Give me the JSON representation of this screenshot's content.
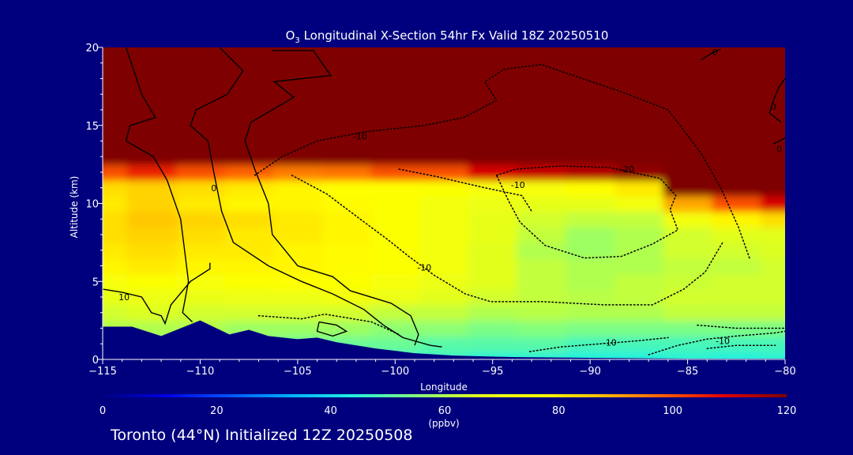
{
  "chart_data": {
    "type": "heatmap",
    "title_prefix": "O",
    "title_subscript": "3",
    "title_rest": " Longitudinal X-Section 54hr  Fx Valid 18Z 20250510",
    "xlabel": "Longitude",
    "ylabel": "Altitude (km)",
    "xlim": [
      -115,
      -80
    ],
    "ylim": [
      0,
      20
    ],
    "x_ticks": [
      -115,
      -110,
      -105,
      -100,
      -95,
      -90,
      -85,
      -80
    ],
    "x_tick_labels": [
      "−115",
      "−110",
      "−105",
      "−100",
      "−95",
      "−90",
      "−85",
      "−80"
    ],
    "y_ticks": [
      0,
      5,
      10,
      15,
      20
    ],
    "y_tick_labels": [
      "0",
      "5",
      "10",
      "15",
      "20"
    ],
    "colorbar": {
      "min": 0,
      "max": 120,
      "ticks": [
        0,
        20,
        40,
        60,
        80,
        100,
        120
      ],
      "tick_labels": [
        "0",
        "20",
        "40",
        "60",
        "80",
        "100",
        "120"
      ],
      "unit": "(ppbv)",
      "colors": [
        "#00007f",
        "#0000e0",
        "#0050ff",
        "#00b0ff",
        "#20f0e0",
        "#80ff80",
        "#e0ff20",
        "#ffff00",
        "#ffc000",
        "#ff6000",
        "#e00000",
        "#7f0000"
      ]
    },
    "ozone_ppbv": {
      "x": [
        -115,
        -112.5,
        -110,
        -107.5,
        -105,
        -102.5,
        -100,
        -97.5,
        -95,
        -92.5,
        -90,
        -87.5,
        -85,
        -82.5,
        -80
      ],
      "y": [
        0,
        1,
        2,
        3,
        4,
        5,
        6,
        7,
        8,
        9,
        10,
        11,
        12,
        13,
        14,
        15,
        16,
        17,
        18,
        19,
        20
      ],
      "values": [
        [
          55,
          55,
          55,
          55,
          48,
          46,
          46,
          47,
          45,
          45,
          44,
          44,
          45,
          44,
          45
        ],
        [
          56,
          56,
          56,
          55,
          52,
          52,
          52,
          50,
          50,
          50,
          48,
          48,
          48,
          48,
          48
        ],
        [
          60,
          60,
          60,
          58,
          58,
          58,
          56,
          56,
          54,
          55,
          54,
          54,
          54,
          54,
          54
        ],
        [
          64,
          65,
          64,
          64,
          64,
          64,
          62,
          62,
          60,
          61,
          60,
          60,
          62,
          62,
          62
        ],
        [
          68,
          70,
          69,
          70,
          70,
          72,
          70,
          66,
          64,
          62,
          61,
          62,
          64,
          64,
          64
        ],
        [
          74,
          75,
          74,
          75,
          76,
          75,
          74,
          70,
          66,
          62,
          60,
          62,
          63,
          64,
          64
        ],
        [
          78,
          80,
          78,
          78,
          78,
          77,
          75,
          72,
          66,
          62,
          60,
          60,
          62,
          62,
          64
        ],
        [
          80,
          82,
          80,
          80,
          78,
          77,
          75,
          72,
          66,
          60,
          58,
          60,
          64,
          64,
          65
        ],
        [
          82,
          84,
          82,
          80,
          80,
          78,
          75,
          72,
          68,
          62,
          58,
          60,
          64,
          66,
          66
        ],
        [
          82,
          86,
          84,
          82,
          80,
          78,
          75,
          72,
          68,
          64,
          62,
          62,
          72,
          78,
          82
        ],
        [
          80,
          84,
          80,
          78,
          78,
          77,
          75,
          72,
          70,
          68,
          68,
          72,
          90,
          100,
          110
        ],
        [
          82,
          84,
          82,
          80,
          78,
          76,
          76,
          75,
          74,
          74,
          76,
          80,
          120,
          120,
          120
        ],
        [
          100,
          105,
          100,
          98,
          95,
          96,
          100,
          100,
          110,
          112,
          114,
          118,
          120,
          120,
          120
        ],
        [
          120,
          120,
          120,
          120,
          120,
          120,
          120,
          120,
          120,
          120,
          120,
          120,
          120,
          120,
          120
        ],
        [
          120,
          120,
          120,
          120,
          120,
          120,
          120,
          120,
          120,
          120,
          120,
          120,
          120,
          120,
          120
        ],
        [
          120,
          120,
          120,
          120,
          120,
          120,
          120,
          120,
          120,
          120,
          120,
          120,
          120,
          120,
          120
        ],
        [
          120,
          120,
          120,
          120,
          120,
          120,
          120,
          120,
          120,
          120,
          120,
          120,
          120,
          120,
          120
        ],
        [
          120,
          120,
          120,
          120,
          120,
          120,
          120,
          120,
          120,
          120,
          120,
          120,
          120,
          120,
          120
        ],
        [
          120,
          120,
          120,
          120,
          120,
          120,
          120,
          120,
          120,
          120,
          120,
          120,
          120,
          120,
          120
        ],
        [
          120,
          120,
          120,
          120,
          120,
          120,
          120,
          120,
          120,
          120,
          120,
          120,
          120,
          120,
          120
        ],
        [
          120,
          120,
          120,
          120,
          120,
          120,
          120,
          120,
          120,
          120,
          120,
          120,
          120,
          120,
          120
        ]
      ]
    },
    "terrain": [
      [
        -115,
        2.1
      ],
      [
        -113.5,
        2.1
      ],
      [
        -112,
        1.5
      ],
      [
        -110,
        2.5
      ],
      [
        -108.5,
        1.6
      ],
      [
        -107.5,
        1.9
      ],
      [
        -106.5,
        1.5
      ],
      [
        -105,
        1.3
      ],
      [
        -104,
        1.4
      ],
      [
        -103,
        1.1
      ],
      [
        -101,
        0.7
      ],
      [
        -99,
        0.4
      ],
      [
        -97,
        0.25
      ],
      [
        -94,
        0.15
      ],
      [
        -90,
        0.1
      ],
      [
        -85,
        0.05
      ],
      [
        -80,
        0.05
      ]
    ],
    "contours": [
      {
        "style": "solid",
        "label": "10",
        "label_at": [
          -113.9,
          4.0
        ],
        "points": [
          [
            -115,
            4.5
          ],
          [
            -114,
            4.3
          ],
          [
            -113,
            4.0
          ],
          [
            -112.5,
            3.0
          ],
          [
            -112.0,
            2.8
          ],
          [
            -111.8,
            2.3
          ],
          [
            -111.5,
            3.5
          ],
          [
            -110.5,
            5.0
          ],
          [
            -109.5,
            5.8
          ],
          [
            -109.5,
            6.2
          ]
        ]
      },
      {
        "style": "solid",
        "label": "",
        "label_at": [],
        "points": [
          [
            -113.8,
            20
          ],
          [
            -113.0,
            17
          ],
          [
            -112.3,
            15.5
          ],
          [
            -113.6,
            15.0
          ],
          [
            -113.8,
            14.0
          ],
          [
            -112.4,
            13.0
          ],
          [
            -111.7,
            11.5
          ],
          [
            -111.0,
            9.0
          ],
          [
            -110.8,
            7.0
          ],
          [
            -110.6,
            5.0
          ],
          [
            -110.9,
            3.0
          ],
          [
            -110.4,
            2.4
          ]
        ]
      },
      {
        "style": "solid",
        "label": "0",
        "label_at": [
          -109.3,
          11.0
        ],
        "points": [
          [
            -109,
            20
          ],
          [
            -107.8,
            18.5
          ],
          [
            -108.6,
            17.0
          ],
          [
            -110.2,
            16.0
          ],
          [
            -110.5,
            15.0
          ],
          [
            -109.6,
            14.0
          ],
          [
            -109.3,
            12.0
          ],
          [
            -108.9,
            9.5
          ],
          [
            -108.3,
            7.5
          ],
          [
            -106.5,
            6.0
          ],
          [
            -104.8,
            5.0
          ],
          [
            -103.2,
            4.2
          ],
          [
            -101.6,
            3.2
          ],
          [
            -100.6,
            2.2
          ],
          [
            -99.6,
            1.4
          ],
          [
            -98.2,
            0.9
          ],
          [
            -97.6,
            0.8
          ]
        ]
      },
      {
        "style": "solid",
        "label": "",
        "label_at": [],
        "points": [
          [
            -106.3,
            19.8
          ],
          [
            -104.2,
            19.8
          ],
          [
            -103.3,
            18.2
          ],
          [
            -106.2,
            17.8
          ],
          [
            -105.2,
            16.8
          ],
          [
            -107.4,
            15.2
          ],
          [
            -107.7,
            14.0
          ],
          [
            -107.2,
            12.2
          ],
          [
            -106.5,
            10.0
          ],
          [
            -106.3,
            8.0
          ],
          [
            -105.0,
            6.0
          ],
          [
            -103.2,
            5.3
          ],
          [
            -102.3,
            4.4
          ],
          [
            -100.2,
            3.6
          ],
          [
            -99.2,
            2.8
          ],
          [
            -98.8,
            1.6
          ],
          [
            -99.0,
            0.9
          ]
        ]
      },
      {
        "style": "solid",
        "label": "",
        "label_at": [],
        "points": [
          [
            -103.9,
            2.4
          ],
          [
            -103.0,
            2.2
          ],
          [
            -102.5,
            1.8
          ],
          [
            -103.2,
            1.5
          ],
          [
            -104.0,
            1.8
          ],
          [
            -103.9,
            2.4
          ]
        ]
      },
      {
        "style": "dotted",
        "label": "-10",
        "label_at": [
          -101.8,
          14.3
        ],
        "points": [
          [
            -107.2,
            11.8
          ],
          [
            -105.8,
            13.0
          ],
          [
            -104.0,
            14.0
          ],
          [
            -101.5,
            14.6
          ],
          [
            -98.5,
            15.0
          ],
          [
            -96.5,
            15.5
          ],
          [
            -94.8,
            16.6
          ],
          [
            -95.4,
            17.8
          ],
          [
            -94.4,
            18.6
          ],
          [
            -92.5,
            18.9
          ],
          [
            -90.4,
            18.0
          ],
          [
            -88.5,
            17.2
          ],
          [
            -86.0,
            16.0
          ],
          [
            -84.3,
            13.2
          ],
          [
            -83.3,
            11.0
          ],
          [
            -82.4,
            8.5
          ],
          [
            -81.8,
            6.4
          ]
        ]
      },
      {
        "style": "dotted",
        "label": "-20",
        "label_at": [
          -88.1,
          12.2
        ],
        "points": [
          [
            -94.8,
            11.8
          ],
          [
            -93.8,
            12.2
          ],
          [
            -91.5,
            12.4
          ],
          [
            -89.0,
            12.3
          ],
          [
            -86.4,
            11.6
          ],
          [
            -85.6,
            10.5
          ],
          [
            -85.9,
            9.6
          ],
          [
            -85.5,
            8.3
          ],
          [
            -86.8,
            7.4
          ],
          [
            -88.4,
            6.6
          ],
          [
            -90.3,
            6.5
          ],
          [
            -92.3,
            7.3
          ],
          [
            -93.6,
            8.8
          ],
          [
            -94.2,
            10.2
          ],
          [
            -94.8,
            11.8
          ]
        ]
      },
      {
        "style": "dotted",
        "label": "-10",
        "label_at": [
          -98.5,
          5.9
        ],
        "points": [
          [
            -105.3,
            11.8
          ],
          [
            -103.5,
            10.6
          ],
          [
            -101.8,
            9.0
          ],
          [
            -100.4,
            7.7
          ],
          [
            -99.3,
            6.6
          ],
          [
            -98.0,
            5.4
          ],
          [
            -96.4,
            4.2
          ],
          [
            -95.1,
            3.7
          ],
          [
            -92.4,
            3.7
          ],
          [
            -89.3,
            3.5
          ],
          [
            -86.8,
            3.5
          ],
          [
            -85.2,
            4.5
          ],
          [
            -84.1,
            5.6
          ],
          [
            -83.2,
            7.5
          ]
        ]
      },
      {
        "style": "dotted",
        "label": "-10",
        "label_at": [
          -93.7,
          11.2
        ],
        "points": [
          [
            -99.8,
            12.2
          ],
          [
            -97.8,
            11.7
          ],
          [
            -96.8,
            11.4
          ],
          [
            -95.4,
            11.0
          ],
          [
            -93.5,
            10.5
          ],
          [
            -93.0,
            9.5
          ]
        ]
      },
      {
        "style": "dotted",
        "label": "-10",
        "label_at": [
          -89.0,
          1.1
        ],
        "points": [
          [
            -93.1,
            0.5
          ],
          [
            -91.5,
            0.8
          ],
          [
            -89.5,
            1.0
          ],
          [
            -87.5,
            1.2
          ],
          [
            -86.0,
            1.4
          ]
        ]
      },
      {
        "style": "dotted",
        "label": "-10",
        "label_at": [
          -83.2,
          1.2
        ],
        "points": [
          [
            -87.0,
            0.3
          ],
          [
            -85.5,
            0.9
          ],
          [
            -84.0,
            1.3
          ],
          [
            -82.5,
            1.5
          ],
          [
            -80.5,
            1.7
          ],
          [
            -80.0,
            1.8
          ]
        ]
      },
      {
        "style": "dotted",
        "label": "",
        "label_at": [],
        "points": [
          [
            -107.0,
            2.8
          ],
          [
            -104.8,
            2.6
          ],
          [
            -103.6,
            2.9
          ],
          [
            -101.2,
            2.4
          ],
          [
            -99.8,
            1.6
          ]
        ]
      },
      {
        "style": "dotted",
        "label": "",
        "label_at": [],
        "points": [
          [
            -84.5,
            2.2
          ],
          [
            -82.5,
            2.0
          ],
          [
            -80.0,
            2.0
          ]
        ]
      },
      {
        "style": "dotted",
        "label": "",
        "label_at": [],
        "points": [
          [
            -84.0,
            0.7
          ],
          [
            -82.5,
            0.9
          ],
          [
            -80.5,
            0.9
          ]
        ]
      },
      {
        "style": "solid",
        "label": "0",
        "label_at": [
          -80.6,
          16.2
        ],
        "points": [
          [
            -80.2,
            15.2
          ],
          [
            -80.8,
            15.8
          ],
          [
            -80.6,
            16.6
          ],
          [
            -80.3,
            17.5
          ],
          [
            -80.0,
            18.0
          ]
        ]
      },
      {
        "style": "solid",
        "label": "0",
        "label_at": [
          -80.3,
          13.5
        ],
        "points": [
          [
            -80.6,
            13.8
          ],
          [
            -80.3,
            14.0
          ],
          [
            -80.0,
            14.2
          ]
        ]
      },
      {
        "style": "solid",
        "label": "0",
        "label_at": [
          -83.6,
          19.7
        ],
        "points": [
          [
            -84.3,
            19.2
          ],
          [
            -83.8,
            19.6
          ],
          [
            -83.3,
            19.9
          ]
        ]
      }
    ]
  },
  "footer": "Toronto (44°N) Initialized 12Z 20250508"
}
